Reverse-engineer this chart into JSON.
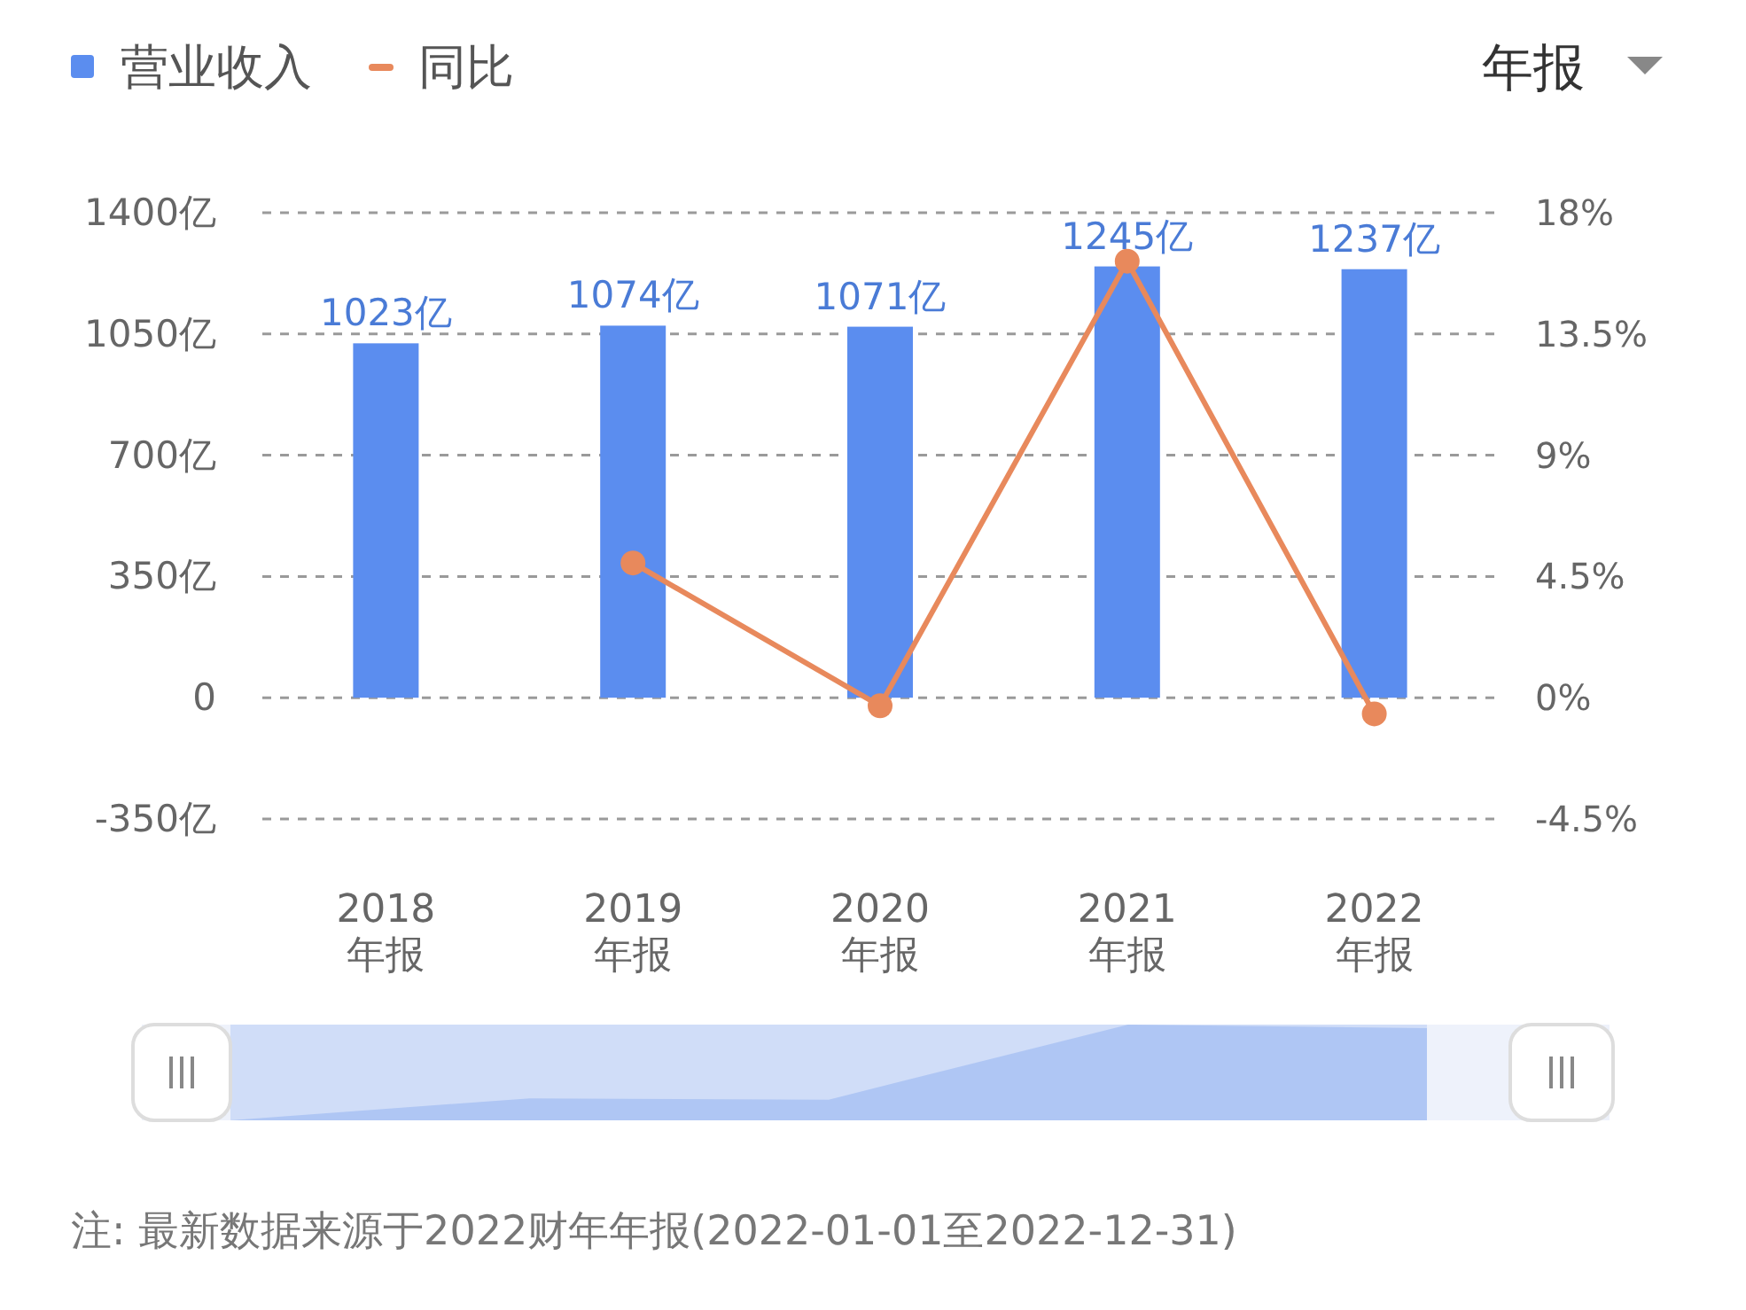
{
  "chart_data": {
    "type": "bar",
    "categories": [
      "2018\n年报",
      "2019\n年报",
      "2020\n年报",
      "2021\n年报",
      "2022\n年报"
    ],
    "series": [
      {
        "name": "营业收入",
        "color": "#5b8def",
        "values": [
          1023,
          1074,
          1071,
          1245,
          1237
        ],
        "value_labels": [
          "1023亿",
          "1074亿",
          "1071亿",
          "1245亿",
          "1237亿"
        ]
      },
      {
        "name": "同比",
        "type": "line",
        "axis": "y2",
        "color": "#e8895c",
        "marker": "circle",
        "values": [
          null,
          5.0,
          -0.3,
          16.2,
          -0.6
        ]
      }
    ],
    "ylim": [
      -350,
      1400
    ],
    "yticks": [
      {
        "value": -350,
        "label": "-350亿"
      },
      0,
      {
        "value": 350,
        "label": "350亿"
      },
      {
        "value": 700,
        "label": "700亿"
      },
      {
        "value": 1050,
        "label": "1050亿"
      },
      {
        "value": 1400,
        "label": "1400亿"
      }
    ],
    "y2lim": [
      -4.5,
      18
    ],
    "y2ticks": [
      {
        "value": -4.5,
        "label": "-4.5%"
      },
      {
        "value": 0,
        "label": "0%"
      },
      {
        "value": 4.5,
        "label": "4.5%"
      },
      {
        "value": 9,
        "label": "9%"
      },
      {
        "value": 13.5,
        "label": "13.5%"
      },
      {
        "value": 18,
        "label": "18%"
      }
    ],
    "grid": "y",
    "legend": "top left",
    "annotations": [
      "年报",
      "注: 最新数据来源于2022财年年报(2022-01-01至2022-12-31)"
    ]
  }
}
